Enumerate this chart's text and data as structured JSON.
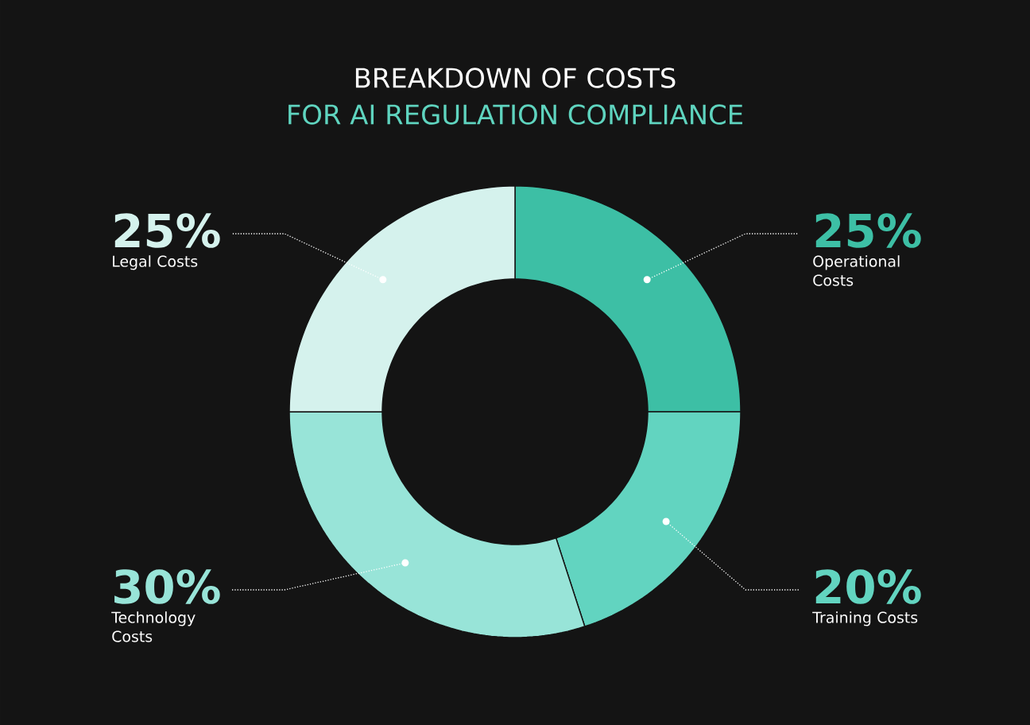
{
  "chart_data": {
    "type": "donut",
    "title": "BREAKDOWN OF COSTS",
    "subtitle": "FOR AI REGULATION COMPLIANCE",
    "categories": [
      "Operational Costs",
      "Training Costs",
      "Technology Costs",
      "Legal Costs"
    ],
    "values": [
      25,
      20,
      30,
      25
    ],
    "colors": [
      "#3dbfa5",
      "#62d4c0",
      "#98e4d8",
      "#d5f2ed"
    ],
    "value_labels": [
      "25%",
      "20%",
      "30%",
      "25%"
    ]
  }
}
